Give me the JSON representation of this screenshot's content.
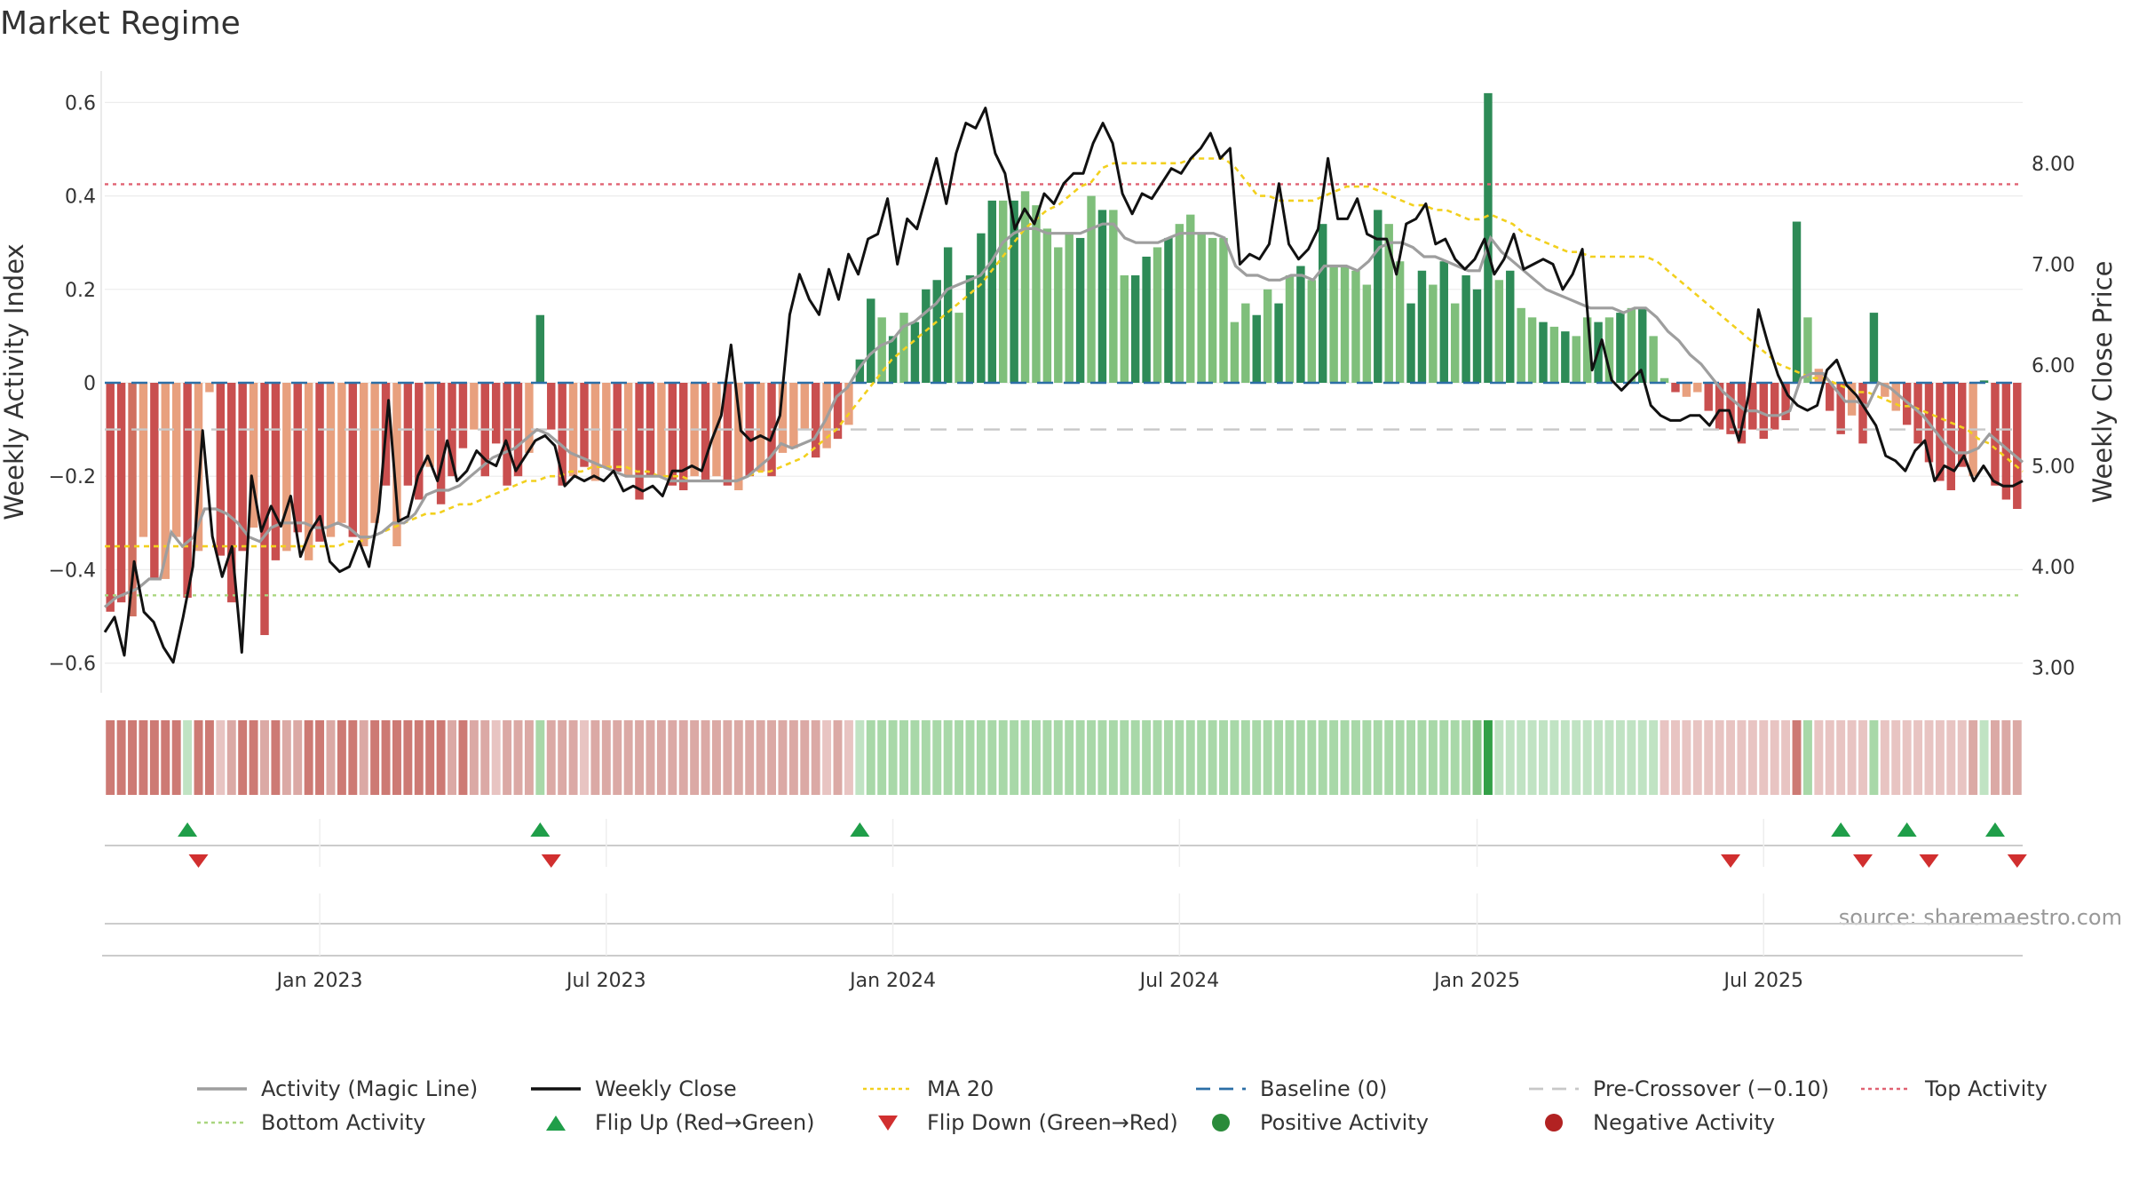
{
  "chart_data": {
    "type": "bar",
    "title": "Market Regime",
    "source": "source: sharemaestro.com",
    "ylabel_left": "Weekly Activity Index",
    "ylabel_right": "Weekly Close Price",
    "y_left_lim": [
      -0.66,
      0.68
    ],
    "y_left_ticks": [
      {
        "v": 0.6,
        "label": "0.6"
      },
      {
        "v": 0.4,
        "label": "0.4"
      },
      {
        "v": 0.2,
        "label": "0.2"
      },
      {
        "v": 0,
        "label": "0"
      },
      {
        "v": -0.2,
        "label": "−0.2"
      },
      {
        "v": -0.4,
        "label": "−0.4"
      },
      {
        "v": -0.6,
        "label": "−0.6"
      }
    ],
    "y_right_ticks": [
      {
        "v": 8.0,
        "label": "8.00"
      },
      {
        "v": 7.0,
        "label": "7.00"
      },
      {
        "v": 6.0,
        "label": "6.00"
      },
      {
        "v": 5.0,
        "label": "5.00"
      },
      {
        "v": 4.0,
        "label": "4.00"
      },
      {
        "v": 3.0,
        "label": "3.00"
      }
    ],
    "x_ticks": [
      {
        "week": 19,
        "label": "Jan 2023"
      },
      {
        "week": 45,
        "label": "Jul 2023"
      },
      {
        "week": 71,
        "label": "Jan 2024"
      },
      {
        "week": 97,
        "label": "Jul 2024"
      },
      {
        "week": 124,
        "label": "Jan 2025"
      },
      {
        "week": 150,
        "label": "Jul 2025"
      }
    ],
    "top_activity": 0.425,
    "bottom_activity": -0.455,
    "pre_crossover": -0.1,
    "baseline": 0,
    "activity": [
      -0.49,
      -0.47,
      -0.5,
      -0.33,
      -0.42,
      -0.42,
      -0.33,
      -0.46,
      -0.36,
      -0.02,
      -0.37,
      -0.47,
      -0.36,
      -0.31,
      -0.54,
      -0.38,
      -0.36,
      -0.32,
      -0.38,
      -0.34,
      -0.33,
      -0.3,
      -0.33,
      -0.35,
      -0.3,
      -0.22,
      -0.35,
      -0.22,
      -0.25,
      -0.18,
      -0.26,
      -0.2,
      -0.14,
      -0.1,
      -0.2,
      -0.13,
      -0.22,
      -0.2,
      -0.15,
      0.145,
      -0.1,
      -0.22,
      -0.2,
      -0.18,
      -0.21,
      -0.18,
      -0.19,
      -0.2,
      -0.25,
      -0.2,
      -0.2,
      -0.22,
      -0.23,
      -0.2,
      -0.21,
      -0.2,
      -0.22,
      -0.23,
      -0.2,
      -0.19,
      -0.2,
      -0.15,
      -0.14,
      -0.1,
      -0.16,
      -0.14,
      -0.12,
      -0.09,
      0.05,
      0.18,
      0.14,
      0.1,
      0.15,
      0.13,
      0.2,
      0.22,
      0.29,
      0.15,
      0.23,
      0.32,
      0.39,
      0.39,
      0.39,
      0.41,
      0.38,
      0.33,
      0.29,
      0.32,
      0.31,
      0.4,
      0.37,
      0.37,
      0.23,
      0.23,
      0.27,
      0.29,
      0.31,
      0.34,
      0.36,
      0.32,
      0.31,
      0.31,
      0.13,
      0.17,
      0.145,
      0.2,
      0.17,
      0.23,
      0.25,
      0.22,
      0.34,
      0.25,
      0.25,
      0.24,
      0.21,
      0.37,
      0.34,
      0.26,
      0.17,
      0.24,
      0.21,
      0.26,
      0.17,
      0.23,
      0.2,
      0.62,
      0.22,
      0.24,
      0.16,
      0.14,
      0.13,
      0.12,
      0.11,
      0.1,
      0.14,
      0.13,
      0.14,
      0.15,
      0.16,
      0.16,
      0.1,
      0.01,
      -0.02,
      -0.03,
      -0.02,
      -0.06,
      -0.1,
      -0.11,
      -0.13,
      -0.1,
      -0.12,
      -0.1,
      -0.08,
      0.345,
      0.14,
      0.03,
      -0.06,
      -0.11,
      -0.07,
      -0.13,
      0.15,
      -0.03,
      -0.06,
      -0.09,
      -0.13,
      -0.17,
      -0.21,
      -0.23,
      -0.18,
      -0.2,
      0.005,
      -0.22,
      -0.25,
      -0.27
    ],
    "bar_color": [
      "#c94f4f",
      "#c94f4f",
      "#d07060",
      "#e8a07e",
      "#c94f4f",
      "#e8a07e",
      "#e8a07e",
      "#c94f4f",
      "#e8a07e",
      "#e8a07e",
      "#c94f4f",
      "#c94f4f",
      "#c94f4f",
      "#e8a07e",
      "#c94f4f",
      "#c94f4f",
      "#e8a07e",
      "#c94f4f",
      "#e8a07e",
      "#c94f4f",
      "#e8a07e",
      "#e8a07e",
      "#c94f4f",
      "#e8a07e",
      "#e8a07e",
      "#c94f4f",
      "#e8a07e",
      "#c94f4f",
      "#c94f4f",
      "#e8a07e",
      "#c94f4f",
      "#c94f4f",
      "#c94f4f",
      "#e8a07e",
      "#c94f4f",
      "#c94f4f",
      "#c94f4f",
      "#c94f4f",
      "#e8a07e",
      "#2e8b57",
      "#c94f4f",
      "#c94f4f",
      "#e8a07e",
      "#c94f4f",
      "#e8a07e",
      "#e8a07e",
      "#c94f4f",
      "#e8a07e",
      "#c94f4f",
      "#c94f4f",
      "#e8a07e",
      "#c94f4f",
      "#c94f4f",
      "#e8a07e",
      "#c94f4f",
      "#e8a07e",
      "#c94f4f",
      "#e8a07e",
      "#c94f4f",
      "#e8a07e",
      "#c94f4f",
      "#e8a07e",
      "#e8a07e",
      "#e8a07e",
      "#c94f4f",
      "#e8a07e",
      "#c94f4f",
      "#e8a07e",
      "#2e8b57",
      "#2e8b57",
      "#7fbf7b",
      "#2e8b57",
      "#7fbf7b",
      "#2e8b57",
      "#2e8b57",
      "#2e8b57",
      "#2e8b57",
      "#7fbf7b",
      "#2e8b57",
      "#2e8b57",
      "#2e8b57",
      "#7fbf7b",
      "#2e8b57",
      "#7fbf7b",
      "#7fbf7b",
      "#7fbf7b",
      "#7fbf7b",
      "#7fbf7b",
      "#2e8b57",
      "#7fbf7b",
      "#2e8b57",
      "#7fbf7b",
      "#7fbf7b",
      "#2e8b57",
      "#2e8b57",
      "#7fbf7b",
      "#2e8b57",
      "#7fbf7b",
      "#7fbf7b",
      "#7fbf7b",
      "#7fbf7b",
      "#7fbf7b",
      "#7fbf7b",
      "#7fbf7b",
      "#2e8b57",
      "#7fbf7b",
      "#2e8b57",
      "#7fbf7b",
      "#2e8b57",
      "#7fbf7b",
      "#2e8b57",
      "#7fbf7b",
      "#7fbf7b",
      "#7fbf7b",
      "#7fbf7b",
      "#2e8b57",
      "#7fbf7b",
      "#7fbf7b",
      "#2e8b57",
      "#2e8b57",
      "#7fbf7b",
      "#2e8b57",
      "#7fbf7b",
      "#2e8b57",
      "#2e8b57",
      "#2e8b57",
      "#7fbf7b",
      "#2e8b57",
      "#7fbf7b",
      "#7fbf7b",
      "#2e8b57",
      "#7fbf7b",
      "#2e8b57",
      "#7fbf7b",
      "#7fbf7b",
      "#2e8b57",
      "#7fbf7b",
      "#2e8b57",
      "#7fbf7b",
      "#2e8b57",
      "#7fbf7b",
      "#7fbf7b",
      "#c94f4f",
      "#e8a07e",
      "#e8a07e",
      "#c94f4f",
      "#c94f4f",
      "#c94f4f",
      "#c94f4f",
      "#c94f4f",
      "#c94f4f",
      "#c94f4f",
      "#c94f4f",
      "#2e8b57",
      "#7fbf7b",
      "#e8a07e",
      "#c94f4f",
      "#c94f4f",
      "#e8a07e",
      "#c94f4f",
      "#2e8b57",
      "#e8a07e",
      "#e8a07e",
      "#c94f4f",
      "#c94f4f",
      "#c94f4f",
      "#c94f4f",
      "#c94f4f",
      "#c94f4f",
      "#e8a07e",
      "#2e8b57",
      "#c94f4f",
      "#c94f4f",
      "#c94f4f"
    ],
    "magic_line": [
      -0.48,
      -0.46,
      -0.45,
      -0.44,
      -0.42,
      -0.42,
      -0.32,
      -0.35,
      -0.33,
      -0.27,
      -0.27,
      -0.28,
      -0.3,
      -0.33,
      -0.34,
      -0.31,
      -0.3,
      -0.3,
      -0.3,
      -0.31,
      -0.31,
      -0.3,
      -0.31,
      -0.33,
      -0.33,
      -0.32,
      -0.3,
      -0.3,
      -0.28,
      -0.24,
      -0.23,
      -0.23,
      -0.22,
      -0.2,
      -0.18,
      -0.16,
      -0.15,
      -0.14,
      -0.12,
      -0.1,
      -0.11,
      -0.13,
      -0.15,
      -0.16,
      -0.17,
      -0.18,
      -0.19,
      -0.2,
      -0.2,
      -0.2,
      -0.2,
      -0.21,
      -0.21,
      -0.21,
      -0.21,
      -0.21,
      -0.21,
      -0.21,
      -0.2,
      -0.18,
      -0.16,
      -0.13,
      -0.14,
      -0.13,
      -0.12,
      -0.08,
      -0.03,
      -0.01,
      0.03,
      0.06,
      0.08,
      0.09,
      0.12,
      0.13,
      0.15,
      0.17,
      0.2,
      0.21,
      0.22,
      0.23,
      0.26,
      0.3,
      0.32,
      0.33,
      0.33,
      0.32,
      0.32,
      0.32,
      0.32,
      0.33,
      0.34,
      0.34,
      0.31,
      0.3,
      0.3,
      0.3,
      0.31,
      0.32,
      0.32,
      0.32,
      0.32,
      0.31,
      0.25,
      0.23,
      0.23,
      0.22,
      0.22,
      0.23,
      0.23,
      0.22,
      0.25,
      0.25,
      0.25,
      0.24,
      0.26,
      0.29,
      0.3,
      0.3,
      0.29,
      0.27,
      0.27,
      0.26,
      0.25,
      0.24,
      0.24,
      0.31,
      0.28,
      0.26,
      0.24,
      0.22,
      0.2,
      0.19,
      0.18,
      0.17,
      0.16,
      0.16,
      0.16,
      0.15,
      0.16,
      0.16,
      0.14,
      0.11,
      0.09,
      0.06,
      0.04,
      0.01,
      -0.02,
      -0.04,
      -0.06,
      -0.06,
      -0.07,
      -0.07,
      -0.06,
      0.01,
      0.02,
      0.02,
      -0.01,
      -0.04,
      -0.04,
      -0.05,
      0,
      -0.01,
      -0.03,
      -0.05,
      -0.07,
      -0.1,
      -0.13,
      -0.15,
      -0.15,
      -0.14,
      -0.11,
      -0.13,
      -0.15,
      -0.17
    ],
    "ma20": [
      -0.35,
      -0.35,
      -0.35,
      -0.35,
      -0.35,
      -0.35,
      -0.35,
      -0.35,
      -0.35,
      -0.35,
      -0.35,
      -0.35,
      -0.35,
      -0.35,
      -0.35,
      -0.35,
      -0.35,
      -0.35,
      -0.35,
      -0.35,
      -0.35,
      -0.35,
      -0.34,
      -0.34,
      -0.33,
      -0.32,
      -0.31,
      -0.3,
      -0.29,
      -0.28,
      -0.28,
      -0.27,
      -0.26,
      -0.26,
      -0.25,
      -0.24,
      -0.23,
      -0.22,
      -0.21,
      -0.21,
      -0.2,
      -0.2,
      -0.19,
      -0.19,
      -0.18,
      -0.18,
      -0.18,
      -0.18,
      -0.19,
      -0.19,
      -0.2,
      -0.2,
      -0.2,
      -0.21,
      -0.21,
      -0.21,
      -0.21,
      -0.21,
      -0.2,
      -0.19,
      -0.19,
      -0.18,
      -0.17,
      -0.16,
      -0.14,
      -0.12,
      -0.1,
      -0.07,
      -0.04,
      -0.01,
      0.02,
      0.05,
      0.07,
      0.09,
      0.11,
      0.13,
      0.15,
      0.17,
      0.19,
      0.21,
      0.24,
      0.27,
      0.3,
      0.33,
      0.35,
      0.37,
      0.38,
      0.4,
      0.42,
      0.43,
      0.46,
      0.47,
      0.47,
      0.47,
      0.47,
      0.47,
      0.47,
      0.47,
      0.48,
      0.48,
      0.48,
      0.48,
      0.46,
      0.43,
      0.4,
      0.4,
      0.39,
      0.39,
      0.39,
      0.39,
      0.4,
      0.41,
      0.42,
      0.42,
      0.42,
      0.41,
      0.4,
      0.39,
      0.38,
      0.38,
      0.37,
      0.37,
      0.36,
      0.35,
      0.35,
      0.36,
      0.35,
      0.34,
      0.32,
      0.31,
      0.3,
      0.29,
      0.28,
      0.28,
      0.27,
      0.27,
      0.27,
      0.27,
      0.27,
      0.27,
      0.26,
      0.24,
      0.22,
      0.2,
      0.18,
      0.16,
      0.14,
      0.12,
      0.1,
      0.08,
      0.06,
      0.04,
      0.03,
      0.02,
      0.01,
      0.01,
      0,
      -0.01,
      -0.02,
      -0.02,
      -0.03,
      -0.04,
      -0.05,
      -0.05,
      -0.06,
      -0.07,
      -0.08,
      -0.09,
      -0.1,
      -0.12,
      -0.13,
      -0.15,
      -0.17,
      -0.19
    ],
    "weekly_close": [
      3.35,
      3.5,
      3.12,
      4.05,
      3.55,
      3.45,
      3.2,
      3.05,
      3.5,
      4.0,
      5.35,
      4.3,
      3.9,
      4.2,
      3.15,
      4.9,
      4.35,
      4.6,
      4.4,
      4.7,
      4.1,
      4.35,
      4.5,
      4.05,
      3.95,
      4.0,
      4.25,
      4.0,
      4.55,
      5.65,
      4.45,
      4.5,
      4.9,
      5.1,
      4.85,
      5.25,
      4.85,
      4.95,
      5.15,
      5.05,
      5.0,
      5.25,
      4.95,
      5.1,
      5.25,
      5.3,
      5.2,
      4.8,
      4.9,
      4.85,
      4.9,
      4.85,
      4.95,
      4.75,
      4.8,
      4.75,
      4.8,
      4.7,
      4.95,
      4.95,
      5.0,
      4.95,
      5.25,
      5.5,
      6.2,
      5.35,
      5.25,
      5.3,
      5.25,
      5.5,
      6.5,
      6.9,
      6.65,
      6.5,
      6.95,
      6.65,
      7.1,
      6.9,
      7.25,
      7.3,
      7.65,
      7.0,
      7.45,
      7.35,
      7.7,
      8.05,
      7.6,
      8.1,
      8.4,
      8.35,
      8.55,
      8.1,
      7.9,
      7.35,
      7.55,
      7.4,
      7.7,
      7.6,
      7.8,
      7.9,
      7.9,
      8.2,
      8.4,
      8.2,
      7.7,
      7.5,
      7.7,
      7.65,
      7.8,
      7.95,
      7.9,
      8.05,
      8.15,
      8.3,
      8.05,
      8.15,
      7.0,
      7.1,
      7.05,
      7.2,
      7.8,
      7.2,
      7.05,
      7.15,
      7.35,
      8.05,
      7.45,
      7.45,
      7.65,
      7.3,
      7.25,
      7.25,
      6.9,
      7.4,
      7.45,
      7.6,
      7.2,
      7.25,
      7.05,
      6.95,
      7.05,
      7.25,
      6.9,
      7.05,
      7.3,
      6.95,
      7.0,
      7.05,
      7.0,
      6.75,
      6.9,
      7.15,
      5.95,
      6.25,
      5.85,
      5.75,
      5.85,
      5.95,
      5.6,
      5.5,
      5.45,
      5.45,
      5.5,
      5.5,
      5.4,
      5.55,
      5.55,
      5.25,
      5.7,
      6.55,
      6.2,
      5.9,
      5.7,
      5.6,
      5.55,
      5.6,
      5.95,
      6.05,
      5.8,
      5.7,
      5.55,
      5.4,
      5.1,
      5.05,
      4.95,
      5.15,
      5.25,
      4.85,
      5.0,
      4.95,
      5.1,
      4.85,
      5.0,
      4.85,
      4.8,
      4.8,
      4.85
    ],
    "regime_strip": [
      "#cd7a74",
      "#cd7a74",
      "#cd7a74",
      "#cd7a74",
      "#cd7a74",
      "#cd7a74",
      "#cd7a74",
      "#c0e3c3",
      "#cd7a74",
      "#cd7a74",
      "#e8c4c2",
      "#dba9a5",
      "#cd7a74",
      "#cd7a74",
      "#dba9a5",
      "#cd7a74",
      "#dba9a5",
      "#dba9a5",
      "#cd7a74",
      "#cd7a74",
      "#dba9a5",
      "#cd7a74",
      "#cd7a74",
      "#dba9a5",
      "#cd7a74",
      "#cd7a74",
      "#cd7a74",
      "#cd7a74",
      "#cd7a74",
      "#cd7a74",
      "#cd7a74",
      "#dba9a5",
      "#cd7a74",
      "#dba9a5",
      "#dba9a5",
      "#e8c4c2",
      "#dba9a5",
      "#dba9a5",
      "#dba9a5",
      "#a8d8a8",
      "#dba9a5",
      "#dba9a5",
      "#dba9a5",
      "#e8c4c2",
      "#dba9a5",
      "#dba9a5",
      "#dba9a5",
      "#dba9a5",
      "#dba9a5",
      "#dba9a5",
      "#dba9a5",
      "#dba9a5",
      "#dba9a5",
      "#dba9a5",
      "#dba9a5",
      "#dba9a5",
      "#dba9a5",
      "#dba9a5",
      "#dba9a5",
      "#dba9a5",
      "#dba9a5",
      "#dba9a5",
      "#dba9a5",
      "#dba9a5",
      "#dba9a5",
      "#e8c4c2",
      "#dba9a5",
      "#e8c4c2",
      "#c0e3c3",
      "#a8d8a8",
      "#a8d8a8",
      "#a8d8a8",
      "#a8d8a8",
      "#a8d8a8",
      "#a8d8a8",
      "#a8d8a8",
      "#a8d8a8",
      "#a8d8a8",
      "#a8d8a8",
      "#a8d8a8",
      "#a8d8a8",
      "#a8d8a8",
      "#a8d8a8",
      "#a8d8a8",
      "#a8d8a8",
      "#a8d8a8",
      "#a8d8a8",
      "#a8d8a8",
      "#a8d8a8",
      "#a8d8a8",
      "#a8d8a8",
      "#a8d8a8",
      "#a8d8a8",
      "#a8d8a8",
      "#a8d8a8",
      "#a8d8a8",
      "#a8d8a8",
      "#a8d8a8",
      "#a8d8a8",
      "#a8d8a8",
      "#a8d8a8",
      "#a8d8a8",
      "#a8d8a8",
      "#a8d8a8",
      "#a8d8a8",
      "#a8d8a8",
      "#a8d8a8",
      "#a8d8a8",
      "#a8d8a8",
      "#a8d8a8",
      "#a8d8a8",
      "#a8d8a8",
      "#a8d8a8",
      "#a8d8a8",
      "#a8d8a8",
      "#a8d8a8",
      "#a8d8a8",
      "#a8d8a8",
      "#a8d8a8",
      "#a8d8a8",
      "#a8d8a8",
      "#a8d8a8",
      "#a8d8a8",
      "#a8d8a8",
      "#8bc98b",
      "#33a047",
      "#c0e3c3",
      "#c0e3c3",
      "#c0e3c3",
      "#c0e3c3",
      "#c0e3c3",
      "#c0e3c3",
      "#c0e3c3",
      "#c0e3c3",
      "#c0e3c3",
      "#c0e3c3",
      "#c0e3c3",
      "#c0e3c3",
      "#c0e3c3",
      "#c0e3c3",
      "#c0e3c3",
      "#e8c4c2",
      "#e8c4c2",
      "#e8c4c2",
      "#e8c4c2",
      "#e8c4c2",
      "#e8c4c2",
      "#e8c4c2",
      "#e8c4c2",
      "#e8c4c2",
      "#e8c4c2",
      "#e8c4c2",
      "#e8c4c2",
      "#cd7a74",
      "#a8d8a8",
      "#e8c4c2",
      "#e8c4c2",
      "#e8c4c2",
      "#e8c4c2",
      "#e8c4c2",
      "#a8d8a8",
      "#e8c4c2",
      "#e8c4c2",
      "#e8c4c2",
      "#e8c4c2",
      "#e8c4c2",
      "#e8c4c2",
      "#e8c4c2",
      "#e8c4c2",
      "#dba9a5",
      "#c0e3c3",
      "#dba9a5",
      "#dba9a5",
      "#dba9a5"
    ],
    "flip_up_weeks": [
      7,
      39,
      68,
      157,
      163,
      171
    ],
    "flip_down_weeks": [
      8,
      40,
      147,
      159,
      165,
      173
    ],
    "legend": [
      "Activity (Magic Line)",
      "Weekly Close",
      "MA 20",
      "Baseline (0)",
      "Pre-Crossover (−0.10)",
      "Top Activity",
      "Bottom Activity",
      "Flip Up (Red→Green)",
      "Flip Down (Green→Red)",
      "Positive Activity",
      "Negative Activity"
    ],
    "colors": {
      "magic_line": "#9e9e9e",
      "close": "#111111",
      "ma20": "#f2d01e",
      "baseline": "#2c6fa6",
      "pre_crossover": "#c8c8c8",
      "top": "#e06272",
      "bottom": "#a9d67f",
      "flip_up": "#1f9e49",
      "flip_down": "#d12f2f",
      "positive": "#2a8b3a",
      "negative": "#b22222"
    }
  }
}
